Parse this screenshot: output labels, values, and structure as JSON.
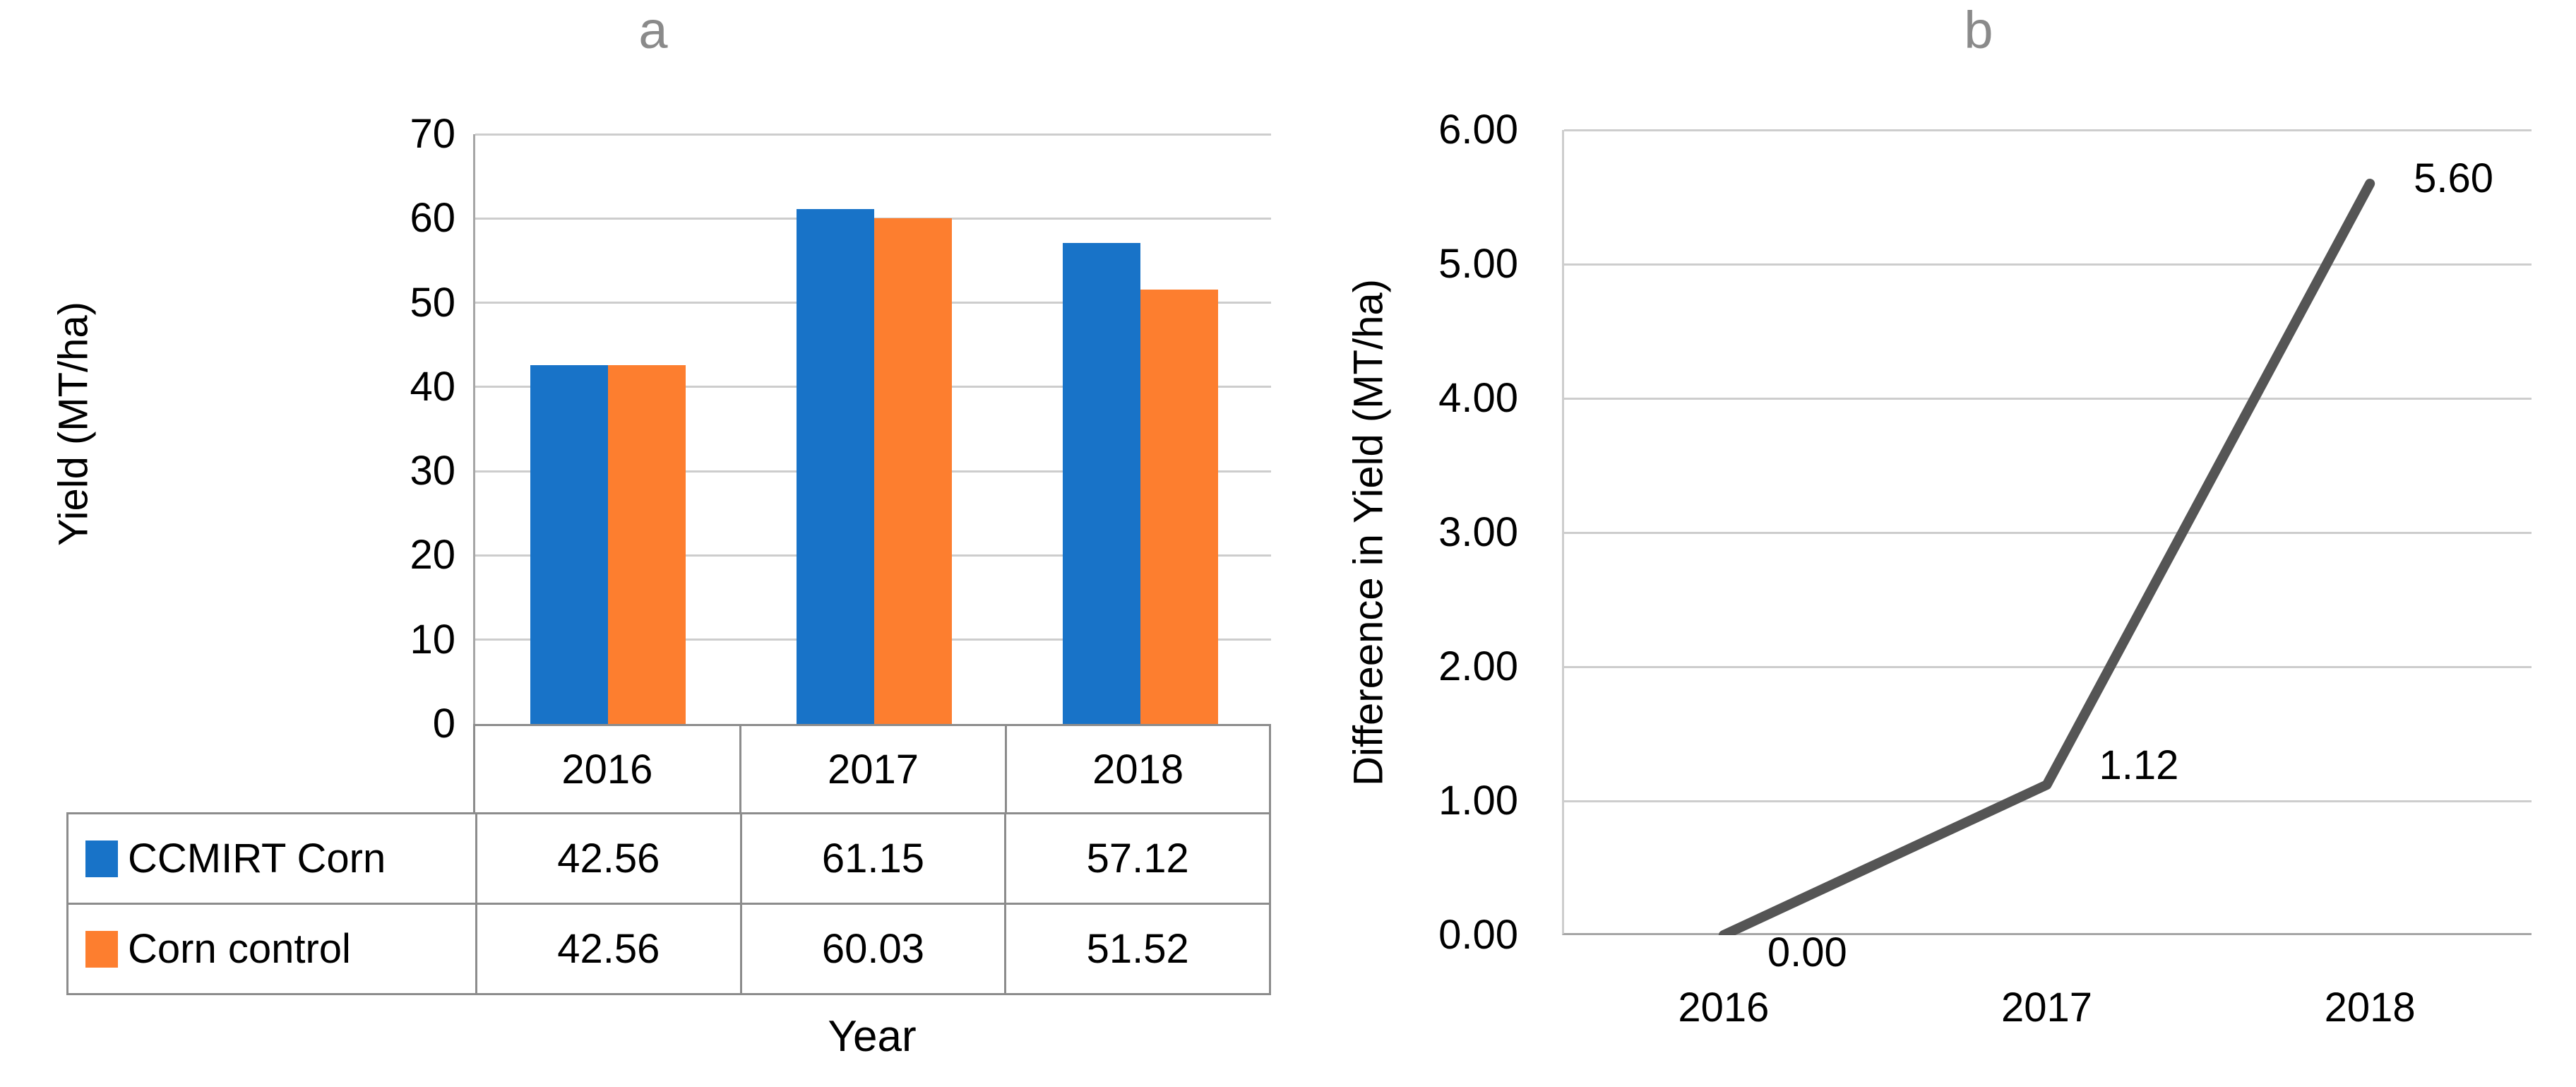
{
  "palette": {
    "bar_blue": "#1873C8",
    "bar_orange": "#FD7E2F",
    "line_gray": "#555555",
    "panel_title_gray": "#8a8a8a"
  },
  "chart_data": [
    {
      "type": "bar",
      "title": "a",
      "categories": [
        "2016",
        "2017",
        "2018"
      ],
      "series": [
        {
          "name": "CCMIRT Corn",
          "color": "#1873C8",
          "values": [
            42.56,
            61.15,
            57.12
          ]
        },
        {
          "name": "Corn control",
          "color": "#FD7E2F",
          "values": [
            42.56,
            60.03,
            51.52
          ]
        }
      ],
      "xlabel": "Year",
      "ylabel": "Yield (MT/ha)",
      "ylim": [
        0,
        70
      ],
      "ytick_step": 10,
      "ytick_labels": [
        "70",
        "60",
        "50",
        "40",
        "30",
        "20",
        "10",
        "0"
      ],
      "grid": true,
      "legend_position": "data-table"
    },
    {
      "type": "line",
      "title": "b",
      "categories": [
        "2016",
        "2017",
        "2018"
      ],
      "series": [
        {
          "name": "Difference in yield",
          "color": "#555555",
          "values": [
            0.0,
            1.12,
            5.6
          ]
        }
      ],
      "data_labels": [
        "0.00",
        "1.12",
        "5.60"
      ],
      "xlabel": "",
      "ylabel": "Differeence in Yield (MT/ha)",
      "ylim": [
        0,
        6
      ],
      "ytick_step": 1,
      "ytick_labels": [
        "6.00",
        "5.00",
        "4.00",
        "3.00",
        "2.00",
        "1.00",
        "0.00"
      ],
      "grid": true,
      "legend_position": "none"
    }
  ]
}
